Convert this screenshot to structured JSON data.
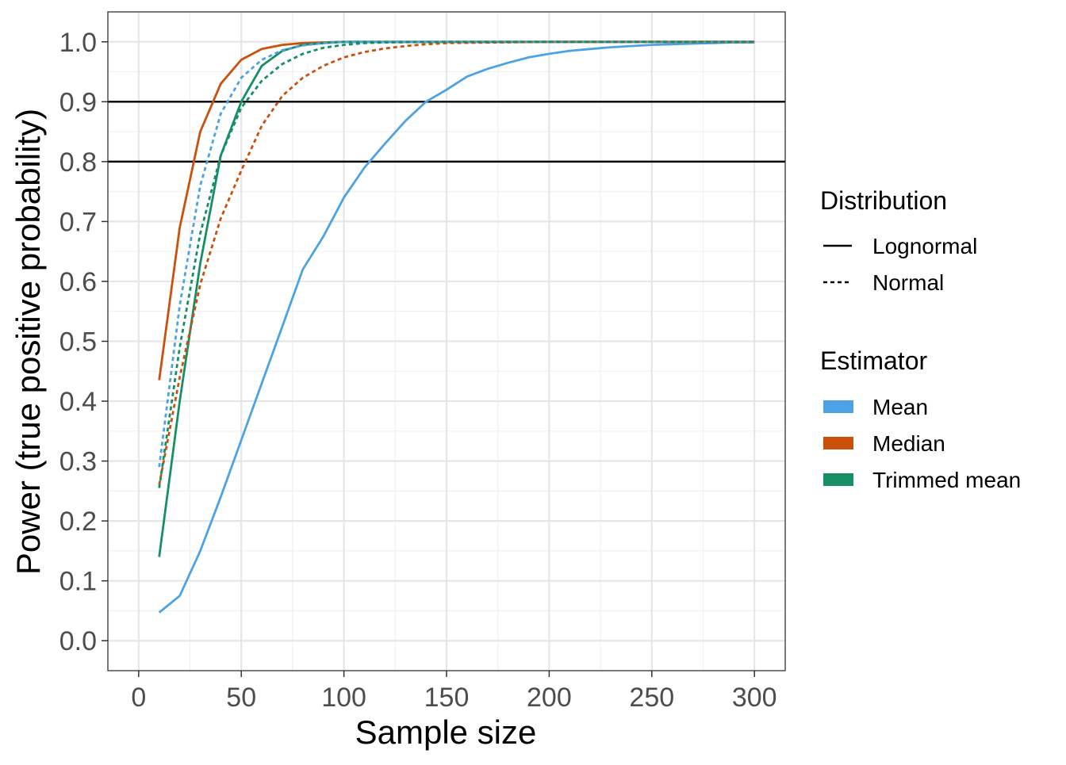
{
  "chart_data": {
    "type": "line",
    "xlabel": "Sample size",
    "ylabel": "Power (true positive probability)",
    "xlim": [
      -15,
      315
    ],
    "ylim": [
      -0.05,
      1.05
    ],
    "x_ticks": [
      0,
      50,
      100,
      150,
      200,
      250,
      300
    ],
    "x_tick_labels": [
      "0",
      "50",
      "100",
      "150",
      "200",
      "250",
      "300"
    ],
    "y_ticks": [
      0.0,
      0.1,
      0.2,
      0.3,
      0.4,
      0.5,
      0.6,
      0.7,
      0.8,
      0.9,
      1.0
    ],
    "y_tick_labels": [
      "0.0",
      "0.1",
      "0.2",
      "0.3",
      "0.4",
      "0.5",
      "0.6",
      "0.7",
      "0.8",
      "0.9",
      "1.0"
    ],
    "grid": true,
    "reference_lines": [
      0.8,
      0.9
    ],
    "reference_line_color": "#000000",
    "legend_position": "right",
    "legends": [
      {
        "title": "Distribution",
        "entries": [
          {
            "label": "Lognormal",
            "linetype": "solid"
          },
          {
            "label": "Normal",
            "linetype": "dashed"
          }
        ]
      },
      {
        "title": "Estimator",
        "entries": [
          {
            "label": "Mean",
            "color": "#4BA3E3"
          },
          {
            "label": "Median",
            "color": "#C9510C"
          },
          {
            "label": "Trimmed mean",
            "color": "#168F62"
          }
        ]
      }
    ],
    "series": [
      {
        "estimator": "Mean",
        "distribution": "Lognormal",
        "color": "#4BA3E3",
        "linetype": "solid",
        "x": [
          10,
          20,
          30,
          40,
          50,
          60,
          70,
          80,
          90,
          100,
          110,
          120,
          130,
          140,
          150,
          160,
          170,
          180,
          190,
          200,
          210,
          220,
          230,
          240,
          250,
          260,
          270,
          280,
          290,
          300
        ],
        "y": [
          0.047,
          0.075,
          0.15,
          0.24,
          0.335,
          0.43,
          0.525,
          0.62,
          0.675,
          0.74,
          0.79,
          0.83,
          0.868,
          0.9,
          0.92,
          0.942,
          0.955,
          0.965,
          0.974,
          0.98,
          0.985,
          0.988,
          0.991,
          0.993,
          0.995,
          0.996,
          0.997,
          0.998,
          0.999,
          0.999
        ]
      },
      {
        "estimator": "Median",
        "distribution": "Lognormal",
        "color": "#C9510C",
        "linetype": "solid",
        "x": [
          10,
          20,
          30,
          40,
          50,
          60,
          70,
          80,
          90,
          100,
          150,
          200,
          250,
          300
        ],
        "y": [
          0.435,
          0.69,
          0.85,
          0.93,
          0.97,
          0.988,
          0.995,
          0.998,
          0.999,
          1.0,
          1.0,
          1.0,
          1.0,
          1.0
        ]
      },
      {
        "estimator": "Trimmed mean",
        "distribution": "Lognormal",
        "color": "#168F62",
        "linetype": "solid",
        "x": [
          10,
          20,
          30,
          40,
          50,
          60,
          70,
          80,
          90,
          100,
          150,
          200,
          250,
          300
        ],
        "y": [
          0.14,
          0.4,
          0.63,
          0.81,
          0.9,
          0.96,
          0.985,
          0.995,
          0.998,
          1.0,
          1.0,
          1.0,
          1.0,
          1.0
        ]
      },
      {
        "estimator": "Mean",
        "distribution": "Normal",
        "color": "#4BA3E3",
        "linetype": "dashed",
        "x": [
          10,
          20,
          30,
          40,
          50,
          60,
          70,
          80,
          90,
          100,
          150,
          200,
          250,
          300
        ],
        "y": [
          0.29,
          0.56,
          0.76,
          0.88,
          0.94,
          0.97,
          0.986,
          0.994,
          0.998,
          1.0,
          1.0,
          1.0,
          1.0,
          1.0
        ]
      },
      {
        "estimator": "Median",
        "distribution": "Normal",
        "color": "#C9510C",
        "linetype": "dashed",
        "x": [
          10,
          20,
          30,
          40,
          50,
          60,
          70,
          80,
          90,
          100,
          110,
          120,
          130,
          140,
          150,
          200,
          250,
          300
        ],
        "y": [
          0.26,
          0.44,
          0.595,
          0.705,
          0.785,
          0.86,
          0.91,
          0.94,
          0.96,
          0.974,
          0.983,
          0.989,
          0.993,
          0.996,
          0.998,
          1.0,
          1.0,
          1.0
        ]
      },
      {
        "estimator": "Trimmed mean",
        "distribution": "Normal",
        "color": "#168F62",
        "linetype": "dashed",
        "x": [
          10,
          20,
          30,
          40,
          50,
          60,
          70,
          80,
          90,
          100,
          110,
          120,
          150,
          200,
          250,
          300
        ],
        "y": [
          0.255,
          0.49,
          0.68,
          0.81,
          0.89,
          0.935,
          0.963,
          0.98,
          0.99,
          0.995,
          0.998,
          0.999,
          1.0,
          1.0,
          1.0,
          1.0
        ]
      }
    ]
  }
}
